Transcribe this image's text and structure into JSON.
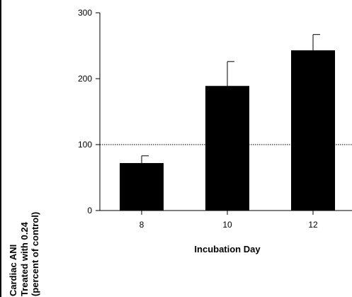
{
  "chart_data": {
    "type": "bar",
    "categories": [
      "8",
      "10",
      "12"
    ],
    "values": [
      72,
      189,
      243
    ],
    "errors": [
      11,
      37,
      24
    ],
    "ylim": [
      0,
      300
    ],
    "yticks": [
      0,
      100,
      200,
      300
    ],
    "reference_line": 100,
    "xlabel": "Incubation Day",
    "ylabel_lines": [
      "Cardiac ANI",
      "Treated with 0.24",
      "(percent of control)"
    ],
    "bar_color": "#000000",
    "grid": false
  }
}
